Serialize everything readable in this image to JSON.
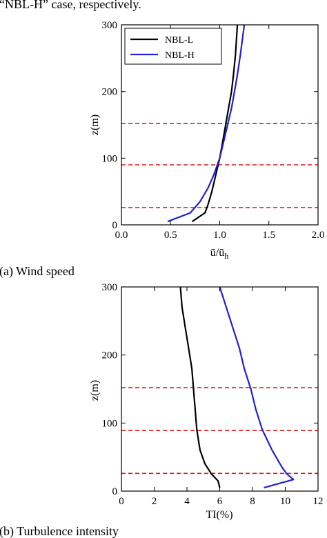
{
  "header_text": "“NBL-H” case, respectively.",
  "captions": {
    "a": "(a) Wind speed",
    "b": "(b) Turbulence intensity"
  },
  "chart_data": [
    {
      "type": "line",
      "title": "",
      "xlabel": "ū/ū",
      "xlabel_sub": "h",
      "ylabel": "z(m)",
      "xlim": [
        0.0,
        2.0
      ],
      "ylim": [
        0,
        300
      ],
      "xticks": [
        "0.0",
        "0.5",
        "1.0",
        "1.5",
        "2.0"
      ],
      "yticks": [
        "0",
        "100",
        "200",
        "300"
      ],
      "grid": false,
      "legend_position": "top-left",
      "reference_lines": {
        "color": "#e41a1c",
        "style": "dashed",
        "y": [
          26,
          90,
          152
        ]
      },
      "series": [
        {
          "name": "NBL-L",
          "color": "#000000",
          "x": [
            0.72,
            0.85,
            0.88,
            0.92,
            0.96,
            1.0,
            1.03,
            1.06,
            1.09,
            1.12,
            1.14,
            1.16,
            1.18
          ],
          "y": [
            5,
            18,
            30,
            50,
            75,
            100,
            125,
            150,
            175,
            200,
            225,
            255,
            300
          ]
        },
        {
          "name": "NBL-H",
          "color": "#1f1fd6",
          "x": [
            0.47,
            0.7,
            0.8,
            0.88,
            0.94,
            1.0,
            1.04,
            1.08,
            1.12,
            1.15,
            1.18,
            1.21,
            1.25
          ],
          "y": [
            5,
            18,
            35,
            55,
            75,
            100,
            125,
            150,
            175,
            200,
            225,
            255,
            300
          ]
        }
      ]
    },
    {
      "type": "line",
      "title": "",
      "xlabel": "TI(%)",
      "ylabel": "z(m)",
      "xlim": [
        0,
        12
      ],
      "ylim": [
        0,
        300
      ],
      "xticks": [
        "0",
        "2",
        "4",
        "6",
        "8",
        "10",
        "12"
      ],
      "yticks": [
        "0",
        "100",
        "200",
        "300"
      ],
      "grid": false,
      "reference_lines": {
        "color": "#e41a1c",
        "style": "dashed",
        "y": [
          26,
          89,
          152
        ]
      },
      "series": [
        {
          "name": "NBL-L",
          "color": "#000000",
          "x": [
            6.0,
            5.9,
            5.5,
            5.1,
            4.8,
            4.6,
            4.5,
            4.4,
            4.3,
            4.1,
            3.9,
            3.7,
            3.6
          ],
          "y": [
            5,
            15,
            25,
            40,
            60,
            90,
            120,
            150,
            180,
            210,
            240,
            270,
            300
          ]
        },
        {
          "name": "NBL-H",
          "color": "#1f1fd6",
          "x": [
            8.7,
            10.5,
            10.1,
            9.8,
            9.2,
            8.6,
            8.2,
            7.9,
            7.5,
            7.2,
            6.8,
            6.4,
            6.0
          ],
          "y": [
            5,
            17,
            25,
            35,
            60,
            90,
            120,
            150,
            180,
            210,
            240,
            270,
            300
          ]
        }
      ]
    }
  ]
}
